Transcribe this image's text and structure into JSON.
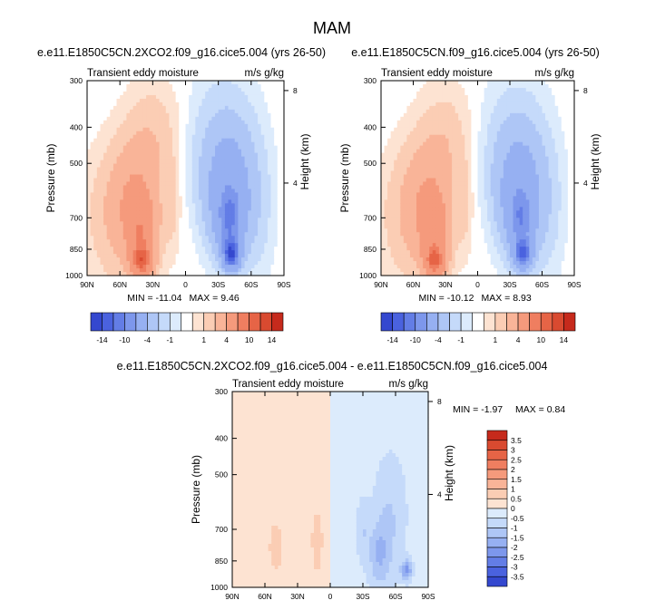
{
  "main_title": "MAM",
  "colors": {
    "pos": [
      "#fde3d2",
      "#fbcdb4",
      "#f9b498",
      "#f59a7c",
      "#ef7e60",
      "#e66446",
      "#d94a30",
      "#c62a1c",
      "#a8121a",
      "#7e0a10"
    ],
    "neg": [
      "#dcebfc",
      "#c5dafa",
      "#aec6f6",
      "#96b0f2",
      "#7d97ec",
      "#637de6",
      "#4a62df",
      "#3448cf",
      "#1d2fb5",
      "#0a1a8a"
    ]
  },
  "chart_data": [
    {
      "type": "heatmap",
      "panel": "top-left",
      "title": "e.e11.E1850C5CN.2XCO2.f09_g16.cice5.004 (yrs 26-50)",
      "left_string": "Transient eddy moisture",
      "right_string": "m/s g/kg",
      "xlabel": "",
      "ylabel": "Pressure (mb)",
      "ylabel_right": "Height (km)",
      "x_ticks": [
        "90N",
        "60N",
        "30N",
        "0",
        "30S",
        "60S",
        "90S"
      ],
      "x_tick_values": [
        90,
        60,
        30,
        0,
        -30,
        -60,
        -90
      ],
      "y_ticks": [
        "300",
        "400",
        "500",
        "700",
        "850",
        "1000"
      ],
      "y_tick_values": [
        300,
        400,
        500,
        700,
        850,
        1000
      ],
      "height_ticks": [
        "8",
        "4"
      ],
      "height_tick_values": [
        8,
        4
      ],
      "xlim": [
        90,
        -90
      ],
      "ylim": [
        1000,
        300
      ],
      "min_label": "MIN = -11.04",
      "max_label": "MAX =  9.46",
      "min": -11.04,
      "max": 9.46,
      "features": [
        {
          "lat": 40,
          "p": 920,
          "value": 8,
          "wlat": 9,
          "hlog": 0.09
        },
        {
          "lat": 40,
          "p": 780,
          "value": 5,
          "wlat": 12,
          "hlog": 0.2
        },
        {
          "lat": 45,
          "p": 620,
          "value": 3,
          "wlat": 22,
          "hlog": 0.34
        },
        {
          "lat": 60,
          "p": 700,
          "value": 1.6,
          "wlat": 28,
          "hlog": 0.38
        },
        {
          "lat": 30,
          "p": 420,
          "value": 1.2,
          "wlat": 22,
          "hlog": 0.3
        },
        {
          "lat": 12,
          "p": 650,
          "value": 0.8,
          "wlat": 6,
          "hlog": 0.25
        },
        {
          "lat": -42,
          "p": 880,
          "value": -11,
          "wlat": 8,
          "hlog": 0.09
        },
        {
          "lat": -40,
          "p": 720,
          "value": -7,
          "wlat": 13,
          "hlog": 0.2
        },
        {
          "lat": -40,
          "p": 580,
          "value": -4,
          "wlat": 18,
          "hlog": 0.32
        },
        {
          "lat": -35,
          "p": 470,
          "value": -2.2,
          "wlat": 26,
          "hlog": 0.4
        },
        {
          "lat": -62,
          "p": 650,
          "value": -1.4,
          "wlat": 16,
          "hlog": 0.4
        },
        {
          "lat": -20,
          "p": 600,
          "value": -0.8,
          "wlat": 10,
          "hlog": 0.3
        }
      ]
    },
    {
      "type": "heatmap",
      "panel": "top-right",
      "title": "e.e11.E1850C5CN.f09_g16.cice5.004 (yrs 26-50)",
      "left_string": "Transient eddy moisture",
      "right_string": "m/s g/kg",
      "xlabel": "",
      "ylabel": "Pressure (mb)",
      "ylabel_right": "Height (km)",
      "x_ticks": [
        "90N",
        "60N",
        "30N",
        "0",
        "30S",
        "60S",
        "90S"
      ],
      "x_tick_values": [
        90,
        60,
        30,
        0,
        -30,
        -60,
        -90
      ],
      "y_ticks": [
        "300",
        "400",
        "500",
        "700",
        "850",
        "1000"
      ],
      "y_tick_values": [
        300,
        400,
        500,
        700,
        850,
        1000
      ],
      "height_ticks": [
        "8",
        "4"
      ],
      "height_tick_values": [
        8,
        4
      ],
      "xlim": [
        90,
        -90
      ],
      "ylim": [
        1000,
        300
      ],
      "min_label": "MIN = -10.12",
      "max_label": "MAX =  8.93",
      "min": -10.12,
      "max": 8.93,
      "features": [
        {
          "lat": 40,
          "p": 920,
          "value": 7.5,
          "wlat": 9,
          "hlog": 0.09
        },
        {
          "lat": 40,
          "p": 780,
          "value": 4.5,
          "wlat": 12,
          "hlog": 0.2
        },
        {
          "lat": 45,
          "p": 620,
          "value": 2.8,
          "wlat": 22,
          "hlog": 0.34
        },
        {
          "lat": 60,
          "p": 700,
          "value": 1.5,
          "wlat": 28,
          "hlog": 0.38
        },
        {
          "lat": 30,
          "p": 430,
          "value": 1.1,
          "wlat": 22,
          "hlog": 0.3
        },
        {
          "lat": 12,
          "p": 650,
          "value": 0.8,
          "wlat": 6,
          "hlog": 0.25
        },
        {
          "lat": -42,
          "p": 880,
          "value": -10,
          "wlat": 8,
          "hlog": 0.09
        },
        {
          "lat": -40,
          "p": 720,
          "value": -6.5,
          "wlat": 13,
          "hlog": 0.2
        },
        {
          "lat": -40,
          "p": 580,
          "value": -3.8,
          "wlat": 18,
          "hlog": 0.32
        },
        {
          "lat": -35,
          "p": 480,
          "value": -2,
          "wlat": 26,
          "hlog": 0.4
        },
        {
          "lat": -62,
          "p": 650,
          "value": -1.3,
          "wlat": 16,
          "hlog": 0.4
        },
        {
          "lat": -20,
          "p": 600,
          "value": -0.8,
          "wlat": 10,
          "hlog": 0.3
        }
      ]
    },
    {
      "type": "heatmap",
      "panel": "bottom-center",
      "title": "e.e11.E1850C5CN.2XCO2.f09_g16.cice5.004 - e.e11.E1850C5CN.f09_g16.cice5.004",
      "left_string": "Transient eddy moisture",
      "right_string": "m/s g/kg",
      "xlabel": "",
      "ylabel": "Pressure (mb)",
      "ylabel_right": "Height (km)",
      "x_ticks": [
        "90N",
        "60N",
        "30N",
        "0",
        "30S",
        "60S",
        "90S"
      ],
      "x_tick_values": [
        90,
        60,
        30,
        0,
        -30,
        -60,
        -90
      ],
      "y_ticks": [
        "300",
        "400",
        "500",
        "700",
        "850",
        "1000"
      ],
      "y_tick_values": [
        300,
        400,
        500,
        700,
        850,
        1000
      ],
      "height_ticks": [
        "8",
        "4"
      ],
      "height_tick_values": [
        8,
        4
      ],
      "xlim": [
        90,
        -90
      ],
      "ylim": [
        1000,
        300
      ],
      "min_label": "MIN =  -1.97",
      "max_label": "MAX =   0.84",
      "min": -1.97,
      "max": 0.84,
      "features": [
        {
          "lat": -45,
          "p": 820,
          "value": -1.1,
          "wlat": 10,
          "hlog": 0.2
        },
        {
          "lat": -55,
          "p": 640,
          "value": -0.7,
          "wlat": 14,
          "hlog": 0.35
        },
        {
          "lat": -70,
          "p": 900,
          "value": -1.9,
          "wlat": 5,
          "hlog": 0.06
        },
        {
          "lat": -30,
          "p": 700,
          "value": -0.6,
          "wlat": 6,
          "hlog": 0.18
        },
        {
          "lat": 12,
          "p": 750,
          "value": 0.8,
          "wlat": 4,
          "hlog": 0.15
        },
        {
          "lat": 50,
          "p": 780,
          "value": 0.7,
          "wlat": 5,
          "hlog": 0.12
        }
      ]
    }
  ],
  "top_labelbar": {
    "labels": [
      "-14",
      "-10",
      "-4",
      "-1",
      "1",
      "4",
      "10",
      "14"
    ],
    "levels": [
      -14,
      -12,
      -10,
      -8,
      -4,
      -2,
      -1,
      -0.5,
      0.5,
      1,
      2,
      4,
      8,
      10,
      12,
      14
    ]
  },
  "diff_labelbar": {
    "labels": [
      "3.5",
      "3",
      "2.5",
      "2",
      "1.5",
      "1",
      "0.5",
      "0",
      "-0.5",
      "-1",
      "-1.5",
      "-2",
      "-2.5",
      "-3",
      "-3.5"
    ],
    "levels": [
      -3.5,
      -3,
      -2.5,
      -2,
      -1.5,
      -1,
      -0.5,
      0,
      0.5,
      1,
      1.5,
      2,
      2.5,
      3,
      3.5
    ]
  }
}
